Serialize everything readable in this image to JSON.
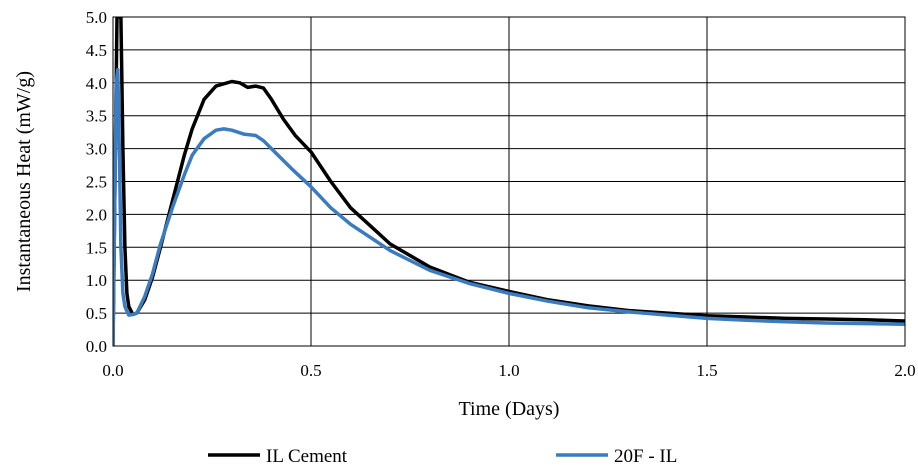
{
  "chart_data": {
    "type": "line",
    "title": "",
    "xlabel": "Time (Days)",
    "ylabel": "Instantaneous Heat (mW/g)",
    "xlim": [
      0,
      2
    ],
    "ylim": [
      0,
      5
    ],
    "grid": true,
    "legend_position": "bottom",
    "x_ticks": [
      "0.0",
      "0.5",
      "1.0",
      "1.5",
      "2.0"
    ],
    "y_ticks": [
      "0.0",
      "0.5",
      "1.0",
      "1.5",
      "2.0",
      "2.5",
      "3.0",
      "3.5",
      "4.0",
      "4.5",
      "5.0"
    ],
    "series": [
      {
        "name": "IL Cement",
        "color": "#000000",
        "points": [
          [
            0.0,
            0.0
          ],
          [
            0.005,
            2.5
          ],
          [
            0.01,
            5.0
          ],
          [
            0.02,
            5.0
          ],
          [
            0.025,
            3.0
          ],
          [
            0.03,
            1.5
          ],
          [
            0.035,
            0.8
          ],
          [
            0.04,
            0.6
          ],
          [
            0.05,
            0.48
          ],
          [
            0.06,
            0.5
          ],
          [
            0.08,
            0.7
          ],
          [
            0.1,
            1.05
          ],
          [
            0.12,
            1.5
          ],
          [
            0.15,
            2.2
          ],
          [
            0.18,
            2.9
          ],
          [
            0.2,
            3.3
          ],
          [
            0.23,
            3.75
          ],
          [
            0.26,
            3.95
          ],
          [
            0.3,
            4.02
          ],
          [
            0.32,
            4.0
          ],
          [
            0.34,
            3.93
          ],
          [
            0.36,
            3.95
          ],
          [
            0.38,
            3.92
          ],
          [
            0.4,
            3.75
          ],
          [
            0.43,
            3.45
          ],
          [
            0.46,
            3.2
          ],
          [
            0.5,
            2.95
          ],
          [
            0.55,
            2.5
          ],
          [
            0.6,
            2.1
          ],
          [
            0.7,
            1.55
          ],
          [
            0.8,
            1.2
          ],
          [
            0.9,
            0.97
          ],
          [
            1.0,
            0.83
          ],
          [
            1.1,
            0.7
          ],
          [
            1.2,
            0.61
          ],
          [
            1.3,
            0.54
          ],
          [
            1.4,
            0.5
          ],
          [
            1.5,
            0.46
          ],
          [
            1.6,
            0.44
          ],
          [
            1.7,
            0.42
          ],
          [
            1.8,
            0.41
          ],
          [
            1.9,
            0.4
          ],
          [
            2.0,
            0.38
          ]
        ]
      },
      {
        "name": "20F - IL",
        "color": "#3a7cbf",
        "points": [
          [
            0.0,
            0.0
          ],
          [
            0.004,
            2.0
          ],
          [
            0.008,
            4.0
          ],
          [
            0.012,
            4.2
          ],
          [
            0.016,
            3.0
          ],
          [
            0.02,
            1.5
          ],
          [
            0.025,
            0.8
          ],
          [
            0.03,
            0.6
          ],
          [
            0.04,
            0.47
          ],
          [
            0.05,
            0.48
          ],
          [
            0.06,
            0.5
          ],
          [
            0.08,
            0.75
          ],
          [
            0.1,
            1.1
          ],
          [
            0.12,
            1.55
          ],
          [
            0.15,
            2.1
          ],
          [
            0.18,
            2.6
          ],
          [
            0.2,
            2.9
          ],
          [
            0.23,
            3.15
          ],
          [
            0.26,
            3.28
          ],
          [
            0.28,
            3.3
          ],
          [
            0.3,
            3.28
          ],
          [
            0.33,
            3.22
          ],
          [
            0.36,
            3.2
          ],
          [
            0.38,
            3.12
          ],
          [
            0.4,
            3.0
          ],
          [
            0.45,
            2.7
          ],
          [
            0.5,
            2.42
          ],
          [
            0.55,
            2.1
          ],
          [
            0.6,
            1.85
          ],
          [
            0.7,
            1.45
          ],
          [
            0.8,
            1.15
          ],
          [
            0.9,
            0.95
          ],
          [
            1.0,
            0.8
          ],
          [
            1.1,
            0.68
          ],
          [
            1.2,
            0.58
          ],
          [
            1.3,
            0.52
          ],
          [
            1.4,
            0.47
          ],
          [
            1.5,
            0.42
          ],
          [
            1.6,
            0.39
          ],
          [
            1.7,
            0.37
          ],
          [
            1.8,
            0.35
          ],
          [
            1.9,
            0.34
          ],
          [
            2.0,
            0.33
          ]
        ]
      }
    ]
  }
}
